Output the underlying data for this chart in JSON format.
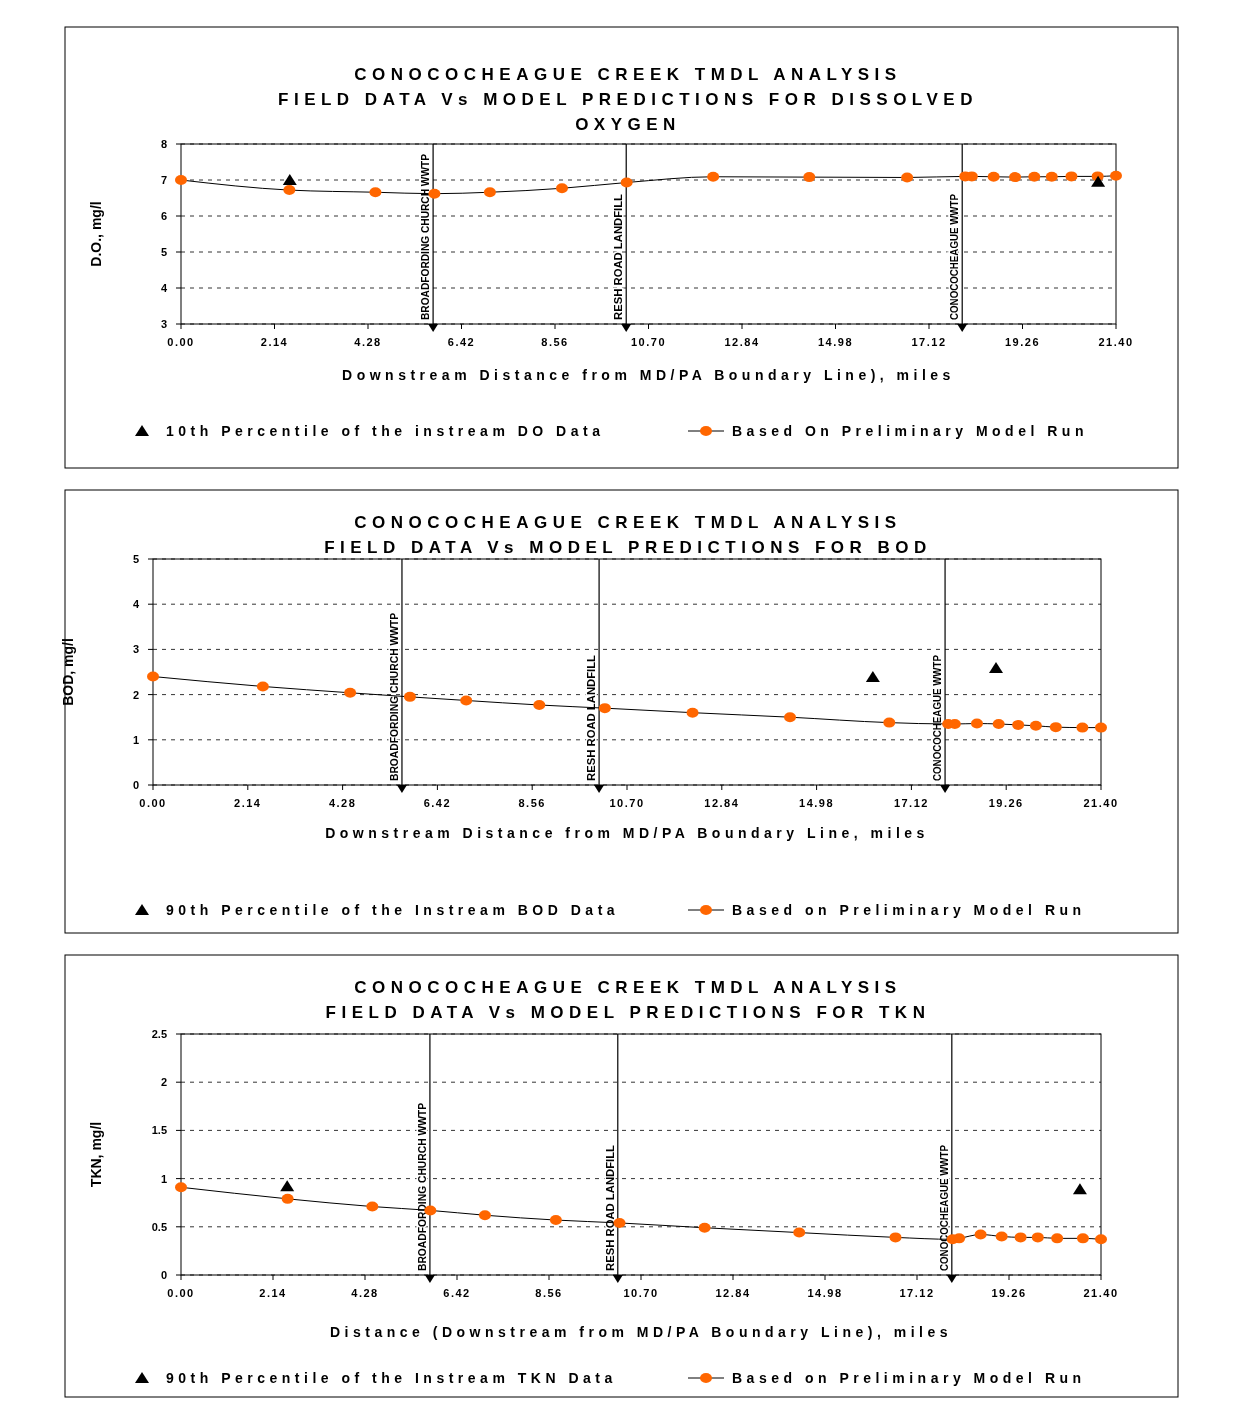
{
  "chart_data": [
    {
      "type": "line",
      "title": "CONOCOCHEAGUE CREEK TMDL ANALYSIS\nFIELD DATA Vs MODEL PREDICTIONS FOR DISSOLVED\nOXYGEN",
      "xlabel": "Downstream Distance from MD/PA Boundary Line), miles",
      "ylabel": "D.O., mg/l",
      "xlim": [
        0,
        21.4
      ],
      "xticks": [
        {
          "value": 0,
          "label": "0.00"
        },
        {
          "value": 2.14,
          "label": "2.14"
        },
        {
          "value": 4.28,
          "label": "4.28"
        },
        {
          "value": 6.42,
          "label": "6.42"
        },
        {
          "value": 8.56,
          "label": "8.56"
        },
        {
          "value": 10.7,
          "label": "10.70"
        },
        {
          "value": 12.84,
          "label": "12.84"
        },
        {
          "value": 14.98,
          "label": "14.98"
        },
        {
          "value": 17.12,
          "label": "17.12"
        },
        {
          "value": 19.26,
          "label": "19.26"
        },
        {
          "value": 21.4,
          "label": "21.40"
        }
      ],
      "ylim": [
        3,
        8
      ],
      "yticks": [
        3,
        4,
        5,
        6,
        7,
        8
      ],
      "grid": "y",
      "legend": "bottom",
      "series": [
        {
          "name": "10th Percentile of the instream DO Data",
          "type": "scatter",
          "marker": "triangle",
          "color": "#000000",
          "x": [
            2.49,
            20.99
          ],
          "values": [
            7.0,
            6.95
          ]
        },
        {
          "name": "Based On Preliminary Model Run",
          "type": "line",
          "marker": "circle",
          "color": "#ff6600",
          "x": [
            0,
            2.48,
            4.45,
            5.8,
            7.07,
            8.72,
            10.2,
            12.18,
            14.38,
            16.62,
            17.95,
            18.1,
            18.6,
            19.09,
            19.53,
            19.93,
            20.38,
            20.98,
            21.4
          ],
          "values": [
            7.0,
            6.72,
            6.66,
            6.62,
            6.66,
            6.77,
            6.93,
            7.09,
            7.08,
            7.07,
            7.1,
            7.1,
            7.09,
            7.08,
            7.09,
            7.09,
            7.1,
            7.1,
            7.12
          ]
        }
      ],
      "ref_lines": [
        {
          "axis": "x",
          "value": 5.77,
          "label": "BROADFORDING CHURCH WWTP"
        },
        {
          "axis": "x",
          "value": 10.19,
          "label": "RESH ROAD LANDFILL"
        },
        {
          "axis": "x",
          "value": 17.88,
          "label": "CONOCOCHEAGUE WWTP"
        }
      ]
    },
    {
      "type": "line",
      "title": "CONOCOCHEAGUE CREEK TMDL ANALYSIS\nFIELD DATA Vs MODEL PREDICTIONS FOR BOD",
      "xlabel": "Downstream Distance from MD/PA Boundary Line, miles",
      "ylabel": "BOD, mg/l",
      "xlim": [
        0,
        21.4
      ],
      "xticks": [
        {
          "value": 0,
          "label": "0.00"
        },
        {
          "value": 2.14,
          "label": "2.14"
        },
        {
          "value": 4.28,
          "label": "4.28"
        },
        {
          "value": 6.42,
          "label": "6.42"
        },
        {
          "value": 8.56,
          "label": "8.56"
        },
        {
          "value": 10.7,
          "label": "10.70"
        },
        {
          "value": 12.84,
          "label": "12.84"
        },
        {
          "value": 14.98,
          "label": "14.98"
        },
        {
          "value": 17.12,
          "label": "17.12"
        },
        {
          "value": 19.26,
          "label": "19.26"
        },
        {
          "value": 21.4,
          "label": "21.40"
        }
      ],
      "ylim": [
        0,
        5
      ],
      "yticks": [
        0,
        1,
        2,
        3,
        4,
        5
      ],
      "grid": "y",
      "legend": "bottom",
      "series": [
        {
          "name": "90th Percentile of the Instream BOD Data",
          "type": "scatter",
          "marker": "triangle",
          "color": "#000000",
          "x": [
            16.25,
            19.03
          ],
          "values": [
            2.39,
            2.59
          ]
        },
        {
          "name": "Based on Preliminary Model Run",
          "type": "line",
          "marker": "circle",
          "color": "#ff6600",
          "x": [
            0,
            2.48,
            4.45,
            5.8,
            7.07,
            8.72,
            10.2,
            12.18,
            14.38,
            16.62,
            17.95,
            18.1,
            18.6,
            19.09,
            19.53,
            19.93,
            20.38,
            20.98,
            21.4
          ],
          "values": [
            2.4,
            2.18,
            2.04,
            1.95,
            1.87,
            1.77,
            1.7,
            1.6,
            1.5,
            1.38,
            1.35,
            1.35,
            1.36,
            1.35,
            1.33,
            1.31,
            1.28,
            1.27,
            1.27
          ]
        }
      ],
      "ref_lines": [
        {
          "axis": "x",
          "value": 5.62,
          "label": "BROADFORDING CHURCH WWTP"
        },
        {
          "axis": "x",
          "value": 10.07,
          "label": "RESH ROAD LANDFILL"
        },
        {
          "axis": "x",
          "value": 17.88,
          "label": "CONOCOCHEAGUE WWTP"
        }
      ]
    },
    {
      "type": "line",
      "title": "CONOCOCHEAGUE CREEK TMDL ANALYSIS\nFIELD DATA Vs MODEL PREDICTIONS FOR TKN",
      "xlabel": "Distance (Downstream from MD/PA Boundary Line), miles",
      "ylabel": "TKN, mg/l",
      "xlim": [
        0,
        21.4
      ],
      "xticks": [
        {
          "value": 0,
          "label": "0.00"
        },
        {
          "value": 2.14,
          "label": "2.14"
        },
        {
          "value": 4.28,
          "label": "4.28"
        },
        {
          "value": 6.42,
          "label": "6.42"
        },
        {
          "value": 8.56,
          "label": "8.56"
        },
        {
          "value": 10.7,
          "label": "10.70"
        },
        {
          "value": 12.84,
          "label": "12.84"
        },
        {
          "value": 14.98,
          "label": "14.98"
        },
        {
          "value": 17.12,
          "label": "17.12"
        },
        {
          "value": 19.26,
          "label": "19.26"
        },
        {
          "value": 21.4,
          "label": "21.40"
        }
      ],
      "ylim": [
        0,
        2.5
      ],
      "yticks": [
        0,
        0.5,
        1,
        1.5,
        2,
        2.5
      ],
      "grid": "y",
      "legend": "bottom",
      "series": [
        {
          "name": "90th Percentile of the Instream TKN Data",
          "type": "scatter",
          "marker": "triangle",
          "color": "#000000",
          "x": [
            2.47,
            20.91
          ],
          "values": [
            0.92,
            0.89
          ]
        },
        {
          "name": "Based on Preliminary Model Run",
          "type": "line",
          "marker": "circle",
          "color": "#ff6600",
          "x": [
            0,
            2.48,
            4.45,
            5.8,
            7.07,
            8.72,
            10.2,
            12.18,
            14.38,
            16.62,
            17.95,
            18.1,
            18.6,
            19.09,
            19.53,
            19.93,
            20.38,
            20.98,
            21.4
          ],
          "values": [
            0.91,
            0.79,
            0.71,
            0.67,
            0.62,
            0.57,
            0.54,
            0.49,
            0.44,
            0.39,
            0.37,
            0.38,
            0.42,
            0.4,
            0.39,
            0.39,
            0.38,
            0.38,
            0.37
          ]
        }
      ],
      "ref_lines": [
        {
          "axis": "x",
          "value": 5.79,
          "label": "BROADFORDING CHURCH WWTP"
        },
        {
          "axis": "x",
          "value": 10.16,
          "label": "RESH ROAD LANDFILL"
        },
        {
          "axis": "x",
          "value": 17.93,
          "label": "CONOCOCHEAGUE WWTP"
        }
      ]
    }
  ]
}
